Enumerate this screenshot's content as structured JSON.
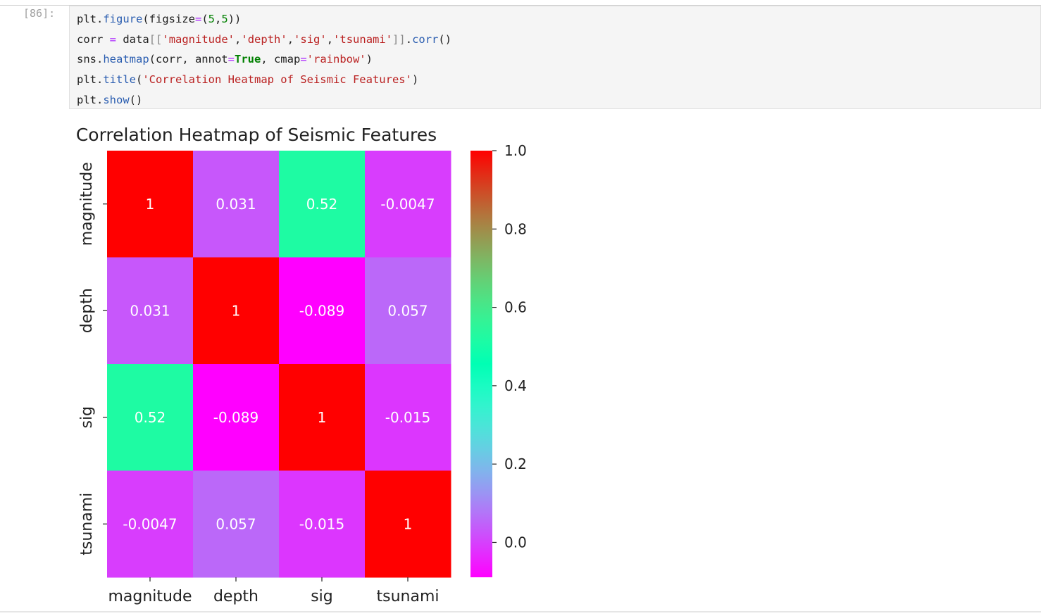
{
  "cell": {
    "prompt": "[86]:",
    "code": {
      "line1": {
        "a": "plt.",
        "fn": "figure",
        "b": "(figsize",
        "eq": "=",
        "c": "(",
        "n1": "5",
        "comma": ",",
        "n2": "5",
        "d": "))"
      },
      "line2": {
        "a": "corr ",
        "eq": "=",
        "b": " data",
        "lb": "[[",
        "s1": "'magnitude'",
        "c1": ",",
        "s2": "'depth'",
        "c2": ",",
        "s3": "'sig'",
        "c3": ",",
        "s4": "'tsunami'",
        "rb": "]]",
        "dot": ".",
        "fn": "corr",
        "e": "()"
      },
      "line3": {
        "a": "sns.",
        "fn": "heatmap",
        "b": "(corr, annot",
        "eq1": "=",
        "kw": "True",
        "c": ", cmap",
        "eq2": "=",
        "s": "'rainbow'",
        "d": ")"
      },
      "line4": {
        "a": "plt.",
        "fn": "title",
        "b": "(",
        "s": "'Correlation Heatmap of Seismic Features'",
        "d": ")"
      },
      "line5": {
        "a": "plt.",
        "fn": "show",
        "b": "()"
      }
    }
  },
  "chart_data": {
    "type": "heatmap",
    "title": "Correlation Heatmap of Seismic Features",
    "x_labels": [
      "magnitude",
      "depth",
      "sig",
      "tsunami"
    ],
    "y_labels": [
      "magnitude",
      "depth",
      "sig",
      "tsunami"
    ],
    "values": [
      [
        1,
        0.031,
        0.52,
        -0.0047
      ],
      [
        0.031,
        1,
        -0.089,
        0.057
      ],
      [
        0.52,
        -0.089,
        1,
        -0.015
      ],
      [
        -0.0047,
        0.057,
        -0.015,
        1
      ]
    ],
    "annotations": [
      [
        "1",
        "0.031",
        "0.52",
        "-0.0047"
      ],
      [
        "0.031",
        "1",
        "-0.089",
        "0.057"
      ],
      [
        "0.52",
        "-0.089",
        "1",
        "-0.015"
      ],
      [
        "-0.0047",
        "0.057",
        "-0.015",
        "1"
      ]
    ],
    "colormap": "rainbow",
    "vmin": -0.089,
    "vmax": 1,
    "colorbar_ticks": [
      0.0,
      0.2,
      0.4,
      0.6,
      0.8,
      1.0
    ],
    "colorbar_tick_labels": [
      "0.0",
      "0.2",
      "0.4",
      "0.6",
      "0.8",
      "1.0"
    ]
  }
}
